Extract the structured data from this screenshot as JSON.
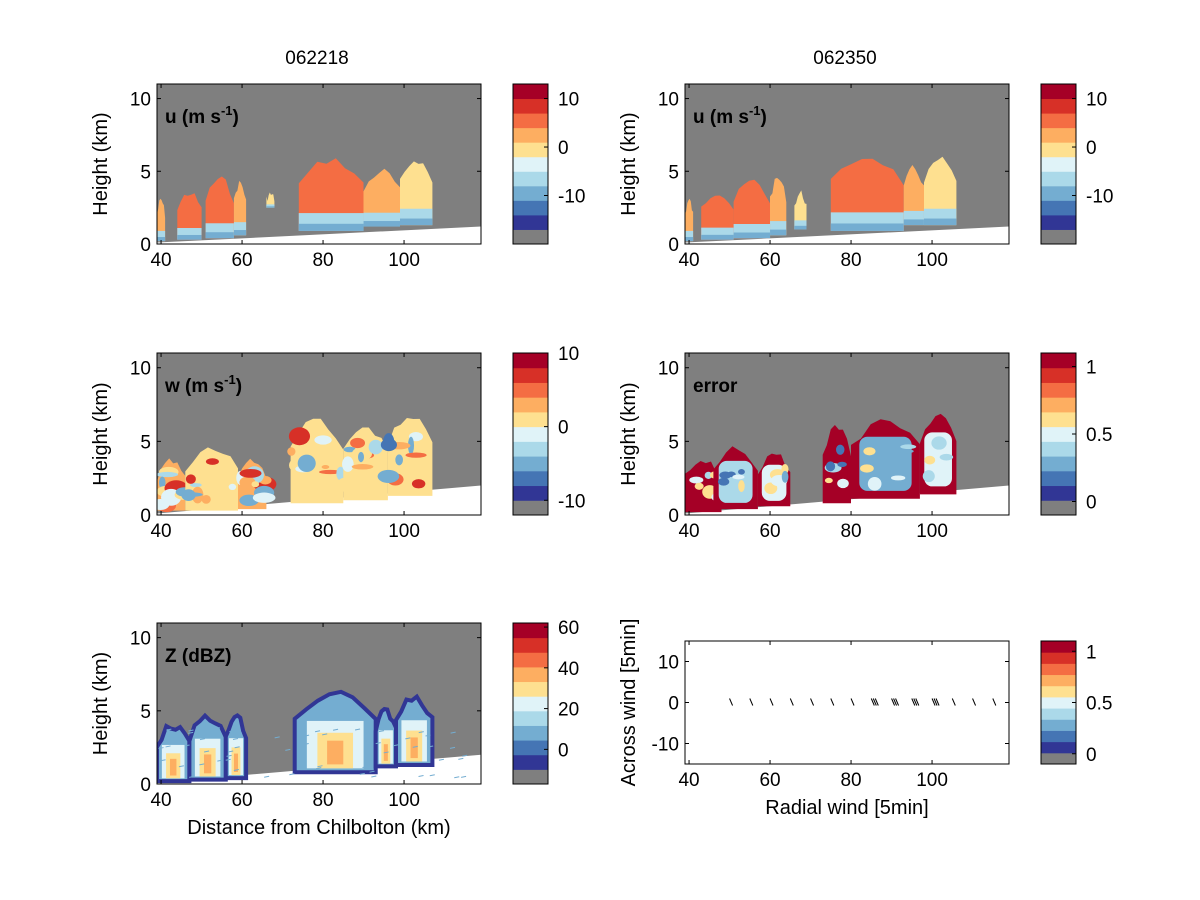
{
  "figure": {
    "col_titles": [
      "062218",
      "062350"
    ],
    "xlabel_bottom_left": "Distance from Chilbolton (km)"
  },
  "palette": [
    "#7f7f7f",
    "#313695",
    "#4575b4",
    "#74add1",
    "#abd9e9",
    "#e0f3f8",
    "#fee090",
    "#fdae61",
    "#f46d43",
    "#d73027",
    "#a50026"
  ],
  "chart_data": [
    {
      "id": "u_062218",
      "type": "heatmap",
      "title": "062218",
      "panel_label": "u (m s",
      "panel_label_sup": "-1",
      "panel_label_tail": ")",
      "xlabel": "",
      "ylabel": "Height (km)",
      "xlim": [
        39,
        119
      ],
      "ylim": [
        0,
        11
      ],
      "xticks": [
        "40",
        "60",
        "80",
        "100"
      ],
      "yticks": [
        "0",
        "5",
        "10"
      ],
      "colorbar": {
        "ticks": [
          "10",
          "0",
          "-10"
        ],
        "tick_values": [
          10,
          0,
          -10
        ],
        "range": [
          -20,
          13
        ]
      },
      "cloud_field": "u",
      "clouds": [
        {
          "x": [
            39,
            41
          ],
          "top": 3.0,
          "base": 0.2,
          "value": 3
        },
        {
          "x": [
            44,
            50
          ],
          "top": 3.5,
          "base": 0.3,
          "value": 4
        },
        {
          "x": [
            51,
            58
          ],
          "top": 4.5,
          "base": 0.4,
          "value": 5
        },
        {
          "x": [
            58,
            61
          ],
          "top": 4.2,
          "base": 0.6,
          "value": 3
        },
        {
          "x": [
            66,
            68
          ],
          "top": 3.4,
          "base": 2.5,
          "value": -2
        },
        {
          "x": [
            74,
            90
          ],
          "top": 5.8,
          "base": 0.9,
          "value": 5
        },
        {
          "x": [
            90,
            99
          ],
          "top": 5.0,
          "base": 1.2,
          "value": 2
        },
        {
          "x": [
            99,
            107
          ],
          "top": 5.8,
          "base": 1.3,
          "value": -3
        }
      ]
    },
    {
      "id": "u_062350",
      "type": "heatmap",
      "title": "062350",
      "panel_label": "u (m s",
      "panel_label_sup": "-1",
      "panel_label_tail": ")",
      "xlabel": "",
      "ylabel": "Height (km)",
      "xlim": [
        39,
        119
      ],
      "ylim": [
        0,
        11
      ],
      "xticks": [
        "40",
        "60",
        "80",
        "100"
      ],
      "yticks": [
        "0",
        "5",
        "10"
      ],
      "colorbar": {
        "ticks": [
          "10",
          "0",
          "-10"
        ],
        "tick_values": [
          10,
          0,
          -10
        ],
        "range": [
          -20,
          13
        ]
      },
      "cloud_field": "u",
      "clouds": [
        {
          "x": [
            39,
            41
          ],
          "top": 3.0,
          "base": 0.2,
          "value": 3
        },
        {
          "x": [
            43,
            51
          ],
          "top": 3.6,
          "base": 0.3,
          "value": 4
        },
        {
          "x": [
            51,
            60
          ],
          "top": 4.3,
          "base": 0.4,
          "value": 5
        },
        {
          "x": [
            60,
            64
          ],
          "top": 4.5,
          "base": 0.6,
          "value": 2
        },
        {
          "x": [
            66,
            69
          ],
          "top": 3.5,
          "base": 1.0,
          "value": -3
        },
        {
          "x": [
            75,
            93
          ],
          "top": 6.0,
          "base": 0.9,
          "value": 5
        },
        {
          "x": [
            93,
            98
          ],
          "top": 5.2,
          "base": 1.3,
          "value": 0
        },
        {
          "x": [
            98,
            106
          ],
          "top": 5.8,
          "base": 1.3,
          "value": -2
        }
      ]
    },
    {
      "id": "w_062218",
      "type": "heatmap",
      "title": "",
      "panel_label": "w (m s",
      "panel_label_sup": "-1",
      "panel_label_tail": ")",
      "xlabel": "",
      "ylabel": "Height (km)",
      "xlim": [
        39,
        119
      ],
      "ylim": [
        0,
        11
      ],
      "xticks": [
        "40",
        "60",
        "80",
        "100"
      ],
      "yticks": [
        "0",
        "5",
        "10"
      ],
      "colorbar": {
        "ticks": [
          "10",
          "0",
          "-10"
        ],
        "tick_values": [
          10,
          0,
          -10
        ],
        "range": [
          -12,
          10
        ]
      },
      "cloud_field": "w",
      "clouds": [
        {
          "x": [
            39,
            46
          ],
          "top": 3.6,
          "base": 0.3,
          "value": 2
        },
        {
          "x": [
            46,
            59
          ],
          "top": 4.6,
          "base": 0.3,
          "value": 1
        },
        {
          "x": [
            59,
            66
          ],
          "top": 3.7,
          "base": 0.4,
          "value": 2
        },
        {
          "x": [
            72,
            85
          ],
          "top": 6.5,
          "base": 0.8,
          "value": 1
        },
        {
          "x": [
            85,
            96
          ],
          "top": 6.0,
          "base": 1.0,
          "value": -1
        },
        {
          "x": [
            96,
            107
          ],
          "top": 6.8,
          "base": 1.3,
          "value": 0
        }
      ]
    },
    {
      "id": "error_062350",
      "type": "heatmap",
      "title": "",
      "panel_label": "error",
      "panel_label_sup": "",
      "panel_label_tail": "",
      "xlabel": "",
      "ylabel": "Height (km)",
      "xlim": [
        39,
        119
      ],
      "ylim": [
        0,
        11
      ],
      "xticks": [
        "40",
        "60",
        "80",
        "100"
      ],
      "yticks": [
        "0",
        "5",
        "10"
      ],
      "colorbar": {
        "ticks": [
          "1",
          "0.5",
          "0"
        ],
        "tick_values": [
          1,
          0.5,
          0
        ],
        "range": [
          -0.1,
          1.1
        ]
      },
      "cloud_field": "error",
      "clouds": [
        {
          "x": [
            39,
            48
          ],
          "top": 3.8,
          "base": 0.2,
          "value": 1.0
        },
        {
          "x": [
            46,
            57
          ],
          "top": 4.6,
          "base": 0.4,
          "value": 0.3
        },
        {
          "x": [
            57,
            65
          ],
          "top": 4.2,
          "base": 0.6,
          "value": 0.5
        },
        {
          "x": [
            73,
            80
          ],
          "top": 6.0,
          "base": 0.8,
          "value": 1.0
        },
        {
          "x": [
            80,
            97
          ],
          "top": 6.5,
          "base": 1.1,
          "value": 0.25
        },
        {
          "x": [
            97,
            106
          ],
          "top": 6.8,
          "base": 1.4,
          "value": 0.4
        }
      ]
    },
    {
      "id": "Z_062218",
      "type": "heatmap",
      "title": "",
      "panel_label": "Z (dBZ)",
      "panel_label_sup": "",
      "panel_label_tail": "",
      "xlabel": "Distance from Chilbolton (km)",
      "ylabel": "Height (km)",
      "xlim": [
        39,
        119
      ],
      "ylim": [
        0,
        11
      ],
      "xticks": [
        "40",
        "60",
        "80",
        "100"
      ],
      "yticks": [
        "0",
        "5",
        "10"
      ],
      "colorbar": {
        "ticks": [
          "60",
          "40",
          "20",
          "0"
        ],
        "tick_values": [
          60,
          40,
          20,
          0
        ],
        "range": [
          -17,
          62
        ]
      },
      "cloud_field": "Z",
      "clouds": [
        {
          "x": [
            39,
            47
          ],
          "top": 4.0,
          "base": 0.2,
          "value": 25
        },
        {
          "x": [
            47,
            56
          ],
          "top": 4.6,
          "base": 0.3,
          "value": 30
        },
        {
          "x": [
            56,
            61
          ],
          "top": 4.6,
          "base": 0.4,
          "value": 28
        },
        {
          "x": [
            73,
            93
          ],
          "top": 6.2,
          "base": 0.8,
          "value": 30
        },
        {
          "x": [
            93,
            98
          ],
          "top": 5.0,
          "base": 1.2,
          "value": 15
        },
        {
          "x": [
            98,
            107
          ],
          "top": 6.0,
          "base": 1.3,
          "value": 30
        }
      ]
    },
    {
      "id": "quiver_062350",
      "type": "scatter",
      "title": "",
      "panel_label": "",
      "panel_label_sup": "",
      "panel_label_tail": "",
      "xlabel": "Radial wind [5min]",
      "ylabel": "Across wind [5min]",
      "xlim": [
        39,
        119
      ],
      "ylim": [
        -15,
        15
      ],
      "xticks": [
        "40",
        "60",
        "80",
        "100"
      ],
      "yticks": [
        "-10",
        "0",
        "10"
      ],
      "colorbar": {
        "ticks": [
          "1",
          "0.5",
          "0"
        ],
        "tick_values": [
          1,
          0.5,
          0
        ],
        "range": [
          -0.1,
          1.1
        ]
      },
      "arrows_x": [
        50,
        55,
        60,
        65,
        70,
        75,
        80,
        85,
        90,
        95,
        100,
        105,
        110,
        115
      ],
      "arrows_y": [
        0,
        0,
        0,
        0,
        0,
        0,
        0,
        0,
        0,
        0,
        0,
        0,
        0,
        0
      ]
    }
  ]
}
